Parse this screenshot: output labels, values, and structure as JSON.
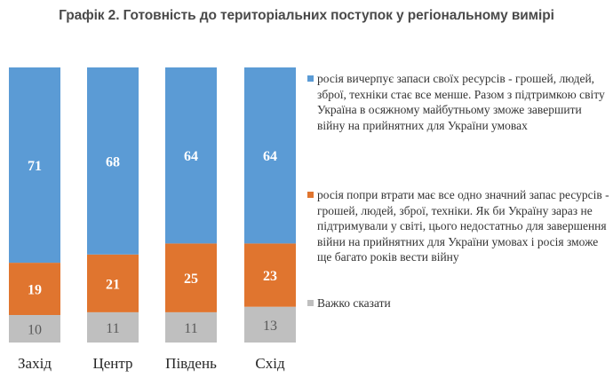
{
  "chart_data": {
    "type": "bar",
    "stacked": true,
    "title": "Графік 2. Готовність до територіальних поступок у регіональному вимірі",
    "categories": [
      "Захід",
      "Центр",
      "Південь",
      "Схід"
    ],
    "series": [
      {
        "name": "росія вичерпує запаси своїх ресурсів - грошей, людей, зброї, техніки стає все менше. Разом з підтримкою світу Україна в осяжному майбутньому зможе завершити війну на прийнятних для України умовах",
        "color": "#5b9bd5",
        "values": [
          71,
          68,
          64,
          64
        ]
      },
      {
        "name": "росія попри втрати має все одно значний запас ресурсів - грошей, людей, зброї, техніки. Як би Україну зараз не підтримували у світі, цього недостатньо для завершення війни на прийнятних для України умовах і росія зможе ще багато років вести війну",
        "color": "#e0752f",
        "values": [
          19,
          21,
          25,
          23
        ]
      },
      {
        "name": "Важко сказати",
        "color": "#bfbfbf",
        "values": [
          10,
          11,
          11,
          13
        ]
      }
    ],
    "ylim": [
      0,
      100
    ],
    "legend_position": "right",
    "grid": false
  }
}
